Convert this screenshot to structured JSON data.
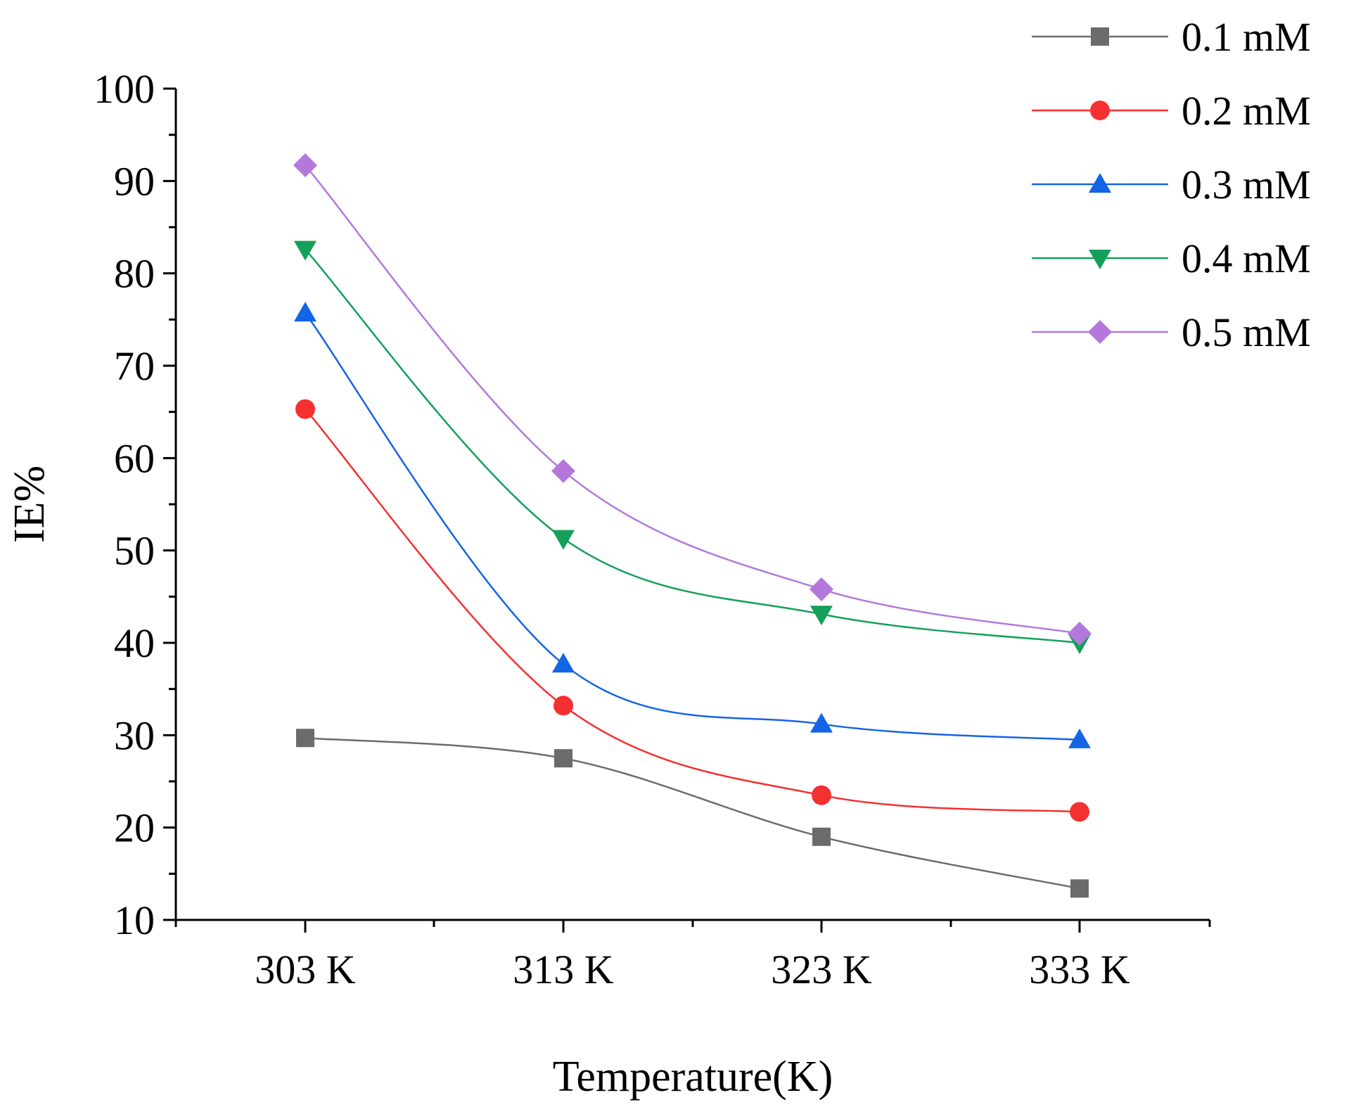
{
  "chart_data": {
    "type": "line",
    "title": "",
    "xlabel": "Temperature(K)",
    "ylabel": "IE%",
    "categories": [
      "303 K",
      "313 K",
      "323 K",
      "333 K"
    ],
    "ylim": [
      10,
      100
    ],
    "yticks": [
      "10",
      "20",
      "30",
      "40",
      "50",
      "60",
      "70",
      "80",
      "90",
      "100"
    ],
    "legend_position": "top-right",
    "grid": false,
    "series": [
      {
        "name": "0.1 mM",
        "color": "#6b6b6b",
        "marker": "square",
        "values": [
          29.7,
          27.5,
          19.0,
          13.4
        ]
      },
      {
        "name": "0.2 mM",
        "color": "#f43030",
        "marker": "circle",
        "values": [
          65.3,
          33.2,
          23.5,
          21.7
        ]
      },
      {
        "name": "0.3 mM",
        "color": "#1464e6",
        "marker": "triangle-up",
        "values": [
          75.7,
          37.7,
          31.2,
          29.5
        ]
      },
      {
        "name": "0.4 mM",
        "color": "#14a05a",
        "marker": "triangle-down",
        "values": [
          82.6,
          51.3,
          43.1,
          40.0
        ]
      },
      {
        "name": "0.5 mM",
        "color": "#b478dc",
        "marker": "diamond",
        "values": [
          91.7,
          58.6,
          45.8,
          41.0
        ]
      }
    ]
  }
}
